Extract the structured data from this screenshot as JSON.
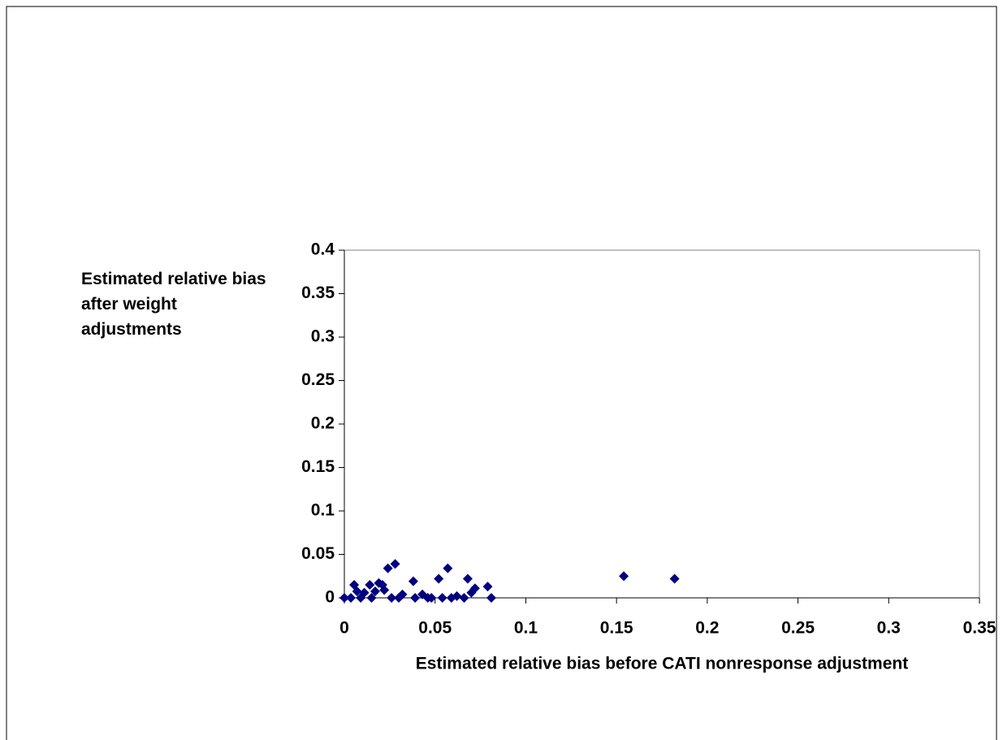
{
  "chart_data": {
    "type": "scatter",
    "xlabel": "Estimated relative bias before CATI nonresponse adjustment",
    "ylabel": "Estimated relative bias after weight adjustments",
    "color": "#000080",
    "x": [
      0,
      0.0036,
      0.0054,
      0.007,
      0.009,
      0.011,
      0.014,
      0.015,
      0.017,
      0.019,
      0.021,
      0.022,
      0.024,
      0.028,
      0.026,
      0.03,
      0.032,
      0.038,
      0.039,
      0.043,
      0.046,
      0.048,
      0.052,
      0.054,
      0.057,
      0.059,
      0.062,
      0.066,
      0.068,
      0.07,
      0.072,
      0.079,
      0.081,
      0.154,
      0.182
    ],
    "values": [
      0,
      0,
      0.015,
      0.0075,
      0,
      0.006,
      0.015,
      0,
      0.0075,
      0.017,
      0.015,
      0.009,
      0.034,
      0.039,
      0,
      0,
      0.004,
      0.019,
      0,
      0.004,
      0,
      0,
      0.022,
      0,
      0.034,
      0,
      0.002,
      0,
      0.022,
      0.006,
      0.011,
      0.013,
      0,
      0.025,
      0.022
    ],
    "xlim": [
      0,
      0.35
    ],
    "xticks": [
      0,
      0.05,
      0.1,
      0.15,
      0.2,
      0.25,
      0.3,
      0.35
    ],
    "ylim": [
      0,
      0.4
    ],
    "yticks": [
      0,
      0.05,
      0.1,
      0.15,
      0.2,
      0.25,
      0.3,
      0.35,
      0.4
    ],
    "grid": false
  }
}
